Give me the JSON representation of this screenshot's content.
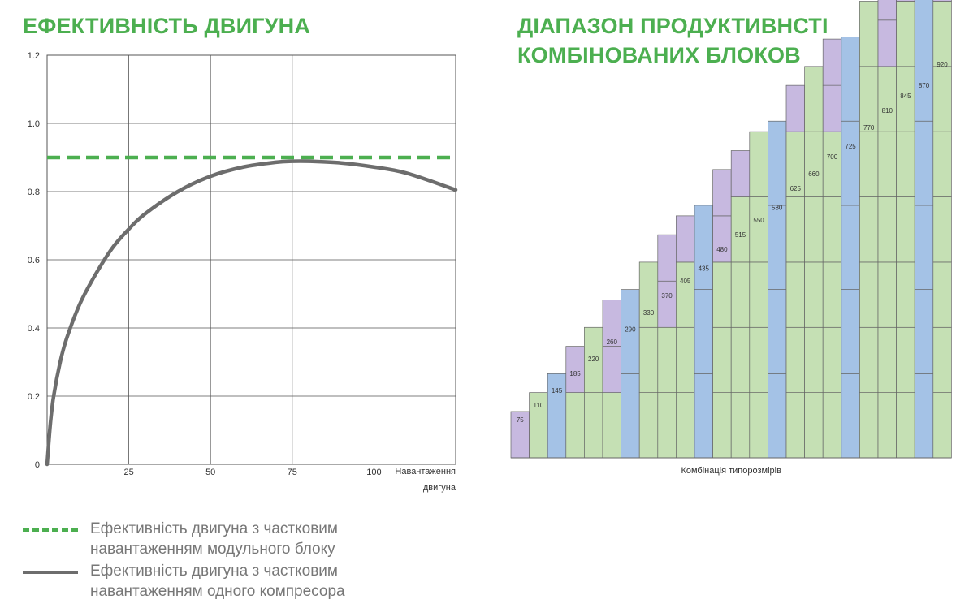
{
  "left_title": "ЕФЕКТИВНІСТЬ ДВИГУНА",
  "right_title_line1": "ДІАПАЗОН ПРОДУКТИВНСТІ",
  "right_title_line2": "КОМБІНОВАНИХ БЛОКОВ",
  "legend": [
    {
      "style": "dashed",
      "color": "#4caf50",
      "line1": "Ефективність двигуна з частковим",
      "line2": "навантаженням модульного блоку"
    },
    {
      "style": "solid",
      "color": "#6d6d6d",
      "line1": "Ефективність двигуна з частковим",
      "line2": "навантаженням одного компресора"
    }
  ],
  "colors": {
    "green": "#c5e0b4",
    "blue": "#a4c2e6",
    "purple": "#c7b9e0",
    "accent": "#4caf50",
    "curve": "#6d6d6d"
  },
  "chart_data": [
    {
      "type": "line",
      "title": "ЕФЕКТИВНІСТЬ ДВИГУНА",
      "xlabel_line1": "Навантаження",
      "xlabel_line2": "двигуна",
      "ylabel": "",
      "xlim": [
        0,
        125
      ],
      "ylim": [
        0,
        1.2
      ],
      "x_ticks": [
        25,
        50,
        75,
        100
      ],
      "y_ticks": [
        0,
        0.2,
        0.4,
        0.6,
        0.8,
        1.0,
        1.2
      ],
      "y_tick_labels": [
        "0",
        "0.2",
        "0.4",
        "0.6",
        "0.8",
        "1.0",
        "1.2"
      ],
      "grid": true,
      "series": [
        {
          "name": "Ефективність двигуна з частковим навантаженням модульного блоку",
          "style": "dashed",
          "x": [
            0,
            125
          ],
          "y": [
            0.9,
            0.9
          ]
        },
        {
          "name": "Ефективність двигуна з частковим навантаженням одного компресора",
          "style": "solid",
          "x": [
            0,
            1,
            2,
            4,
            6,
            10,
            15,
            20,
            25,
            30,
            40,
            50,
            60,
            70,
            75,
            80,
            90,
            100,
            110,
            125
          ],
          "y": [
            0,
            0.12,
            0.2,
            0.3,
            0.37,
            0.47,
            0.56,
            0.635,
            0.69,
            0.735,
            0.8,
            0.845,
            0.872,
            0.886,
            0.889,
            0.889,
            0.884,
            0.872,
            0.854,
            0.805
          ]
        }
      ]
    },
    {
      "type": "bar",
      "title": "ДІАПАЗОН ПРОДУКТИВНСТІ КОМБІНОВАНИХ БЛОКОВ",
      "xlabel": "Комбінація типорозмірів",
      "ylim": [
        0,
        920
      ],
      "module_values": {
        "green": 155,
        "blue": 200,
        "purple": 110
      },
      "categories": [
        "75",
        "110",
        "145",
        "185",
        "220",
        "260",
        "290",
        "330",
        "370",
        "405",
        "435",
        "480",
        "515",
        "550",
        "580",
        "625",
        "660",
        "700",
        "725",
        "770",
        "810",
        "845",
        "870",
        "920"
      ],
      "values": [
        75,
        110,
        145,
        185,
        220,
        260,
        290,
        330,
        370,
        405,
        435,
        480,
        515,
        550,
        580,
        625,
        660,
        700,
        725,
        770,
        810,
        845,
        870,
        920
      ],
      "stacks": [
        [
          "purple"
        ],
        [
          "green"
        ],
        [
          "blue"
        ],
        [
          "green",
          "purple"
        ],
        [
          "green",
          "green"
        ],
        [
          "green",
          "purple",
          "purple"
        ],
        [
          "blue",
          "blue"
        ],
        [
          "green",
          "green",
          "green"
        ],
        [
          "green",
          "green",
          "purple",
          "purple"
        ],
        [
          "green",
          "green",
          "green",
          "purple"
        ],
        [
          "blue",
          "blue",
          "blue"
        ],
        [
          "green",
          "green",
          "green",
          "purple",
          "purple"
        ],
        [
          "green",
          "green",
          "green",
          "green",
          "purple"
        ],
        [
          "green",
          "green",
          "green",
          "green",
          "green"
        ],
        [
          "blue",
          "blue",
          "blue",
          "blue"
        ],
        [
          "green",
          "green",
          "green",
          "green",
          "green",
          "purple"
        ],
        [
          "green",
          "green",
          "green",
          "green",
          "green",
          "green"
        ],
        [
          "green",
          "green",
          "green",
          "green",
          "green",
          "purple",
          "purple"
        ],
        [
          "blue",
          "blue",
          "blue",
          "blue",
          "blue"
        ],
        [
          "green",
          "green",
          "green",
          "green",
          "green",
          "green",
          "green"
        ],
        [
          "green",
          "green",
          "green",
          "green",
          "green",
          "green",
          "purple",
          "purple"
        ],
        [
          "green",
          "green",
          "green",
          "green",
          "green",
          "green",
          "green",
          "purple"
        ],
        [
          "blue",
          "blue",
          "blue",
          "blue",
          "blue",
          "blue"
        ],
        [
          "green",
          "green",
          "green",
          "green",
          "green",
          "green",
          "green",
          "purple",
          "purple"
        ]
      ]
    }
  ]
}
